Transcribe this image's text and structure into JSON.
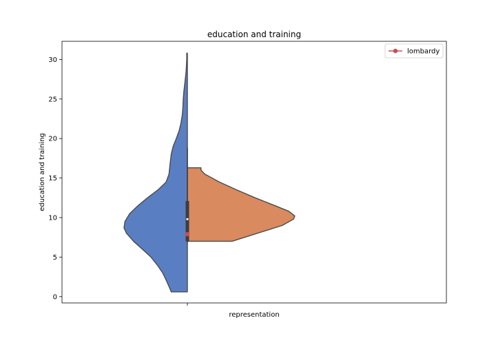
{
  "chart_data": {
    "type": "violin",
    "title": "education and training",
    "xlabel": "",
    "ylabel": "education and training",
    "categories": [
      "representation"
    ],
    "ylim": [
      -0.8,
      32.3
    ],
    "yticks": [
      0,
      5,
      10,
      15,
      20,
      25,
      30
    ],
    "grid": false,
    "legend": {
      "placement": "top-right",
      "entries": [
        "lombardy"
      ]
    },
    "split": true,
    "series": [
      {
        "side": "left",
        "color": "#5a7ec2",
        "range": [
          0.6,
          30.8
        ],
        "density_profile": [
          [
            0.6,
            0.51
          ],
          [
            1.0,
            0.55
          ],
          [
            2.0,
            0.66
          ],
          [
            3.0,
            0.78
          ],
          [
            4.0,
            0.95
          ],
          [
            5.0,
            1.15
          ],
          [
            6.0,
            1.42
          ],
          [
            7.0,
            1.7
          ],
          [
            8.0,
            1.92
          ],
          [
            8.7,
            2.0
          ],
          [
            9.5,
            1.97
          ],
          [
            10.5,
            1.82
          ],
          [
            11.5,
            1.56
          ],
          [
            12.5,
            1.26
          ],
          [
            13.5,
            0.93
          ],
          [
            14.5,
            0.67
          ],
          [
            15.5,
            0.58
          ],
          [
            17.0,
            0.54
          ],
          [
            18.0,
            0.51
          ],
          [
            19.0,
            0.45
          ],
          [
            20.0,
            0.35
          ],
          [
            21.0,
            0.26
          ],
          [
            22.0,
            0.2
          ],
          [
            23.0,
            0.16
          ],
          [
            24.0,
            0.14
          ],
          [
            25.0,
            0.13
          ],
          [
            26.0,
            0.11
          ],
          [
            27.0,
            0.08
          ],
          [
            28.5,
            0.04
          ],
          [
            30.0,
            0.02
          ],
          [
            30.8,
            0.02
          ]
        ]
      },
      {
        "side": "right",
        "color": "#d98a5f",
        "range": [
          7.0,
          16.3
        ],
        "density_profile": [
          [
            7.0,
            1.41
          ],
          [
            8.0,
            2.2
          ],
          [
            9.0,
            2.99
          ],
          [
            9.8,
            3.35
          ],
          [
            10.2,
            3.39
          ],
          [
            10.8,
            3.2
          ],
          [
            11.5,
            2.77
          ],
          [
            12.5,
            2.14
          ],
          [
            13.5,
            1.56
          ],
          [
            14.5,
            1.01
          ],
          [
            15.5,
            0.55
          ],
          [
            16.0,
            0.43
          ],
          [
            16.3,
            0.43
          ]
        ]
      }
    ],
    "box": {
      "q1": 7.0,
      "q3": 12.1,
      "median": 9.8,
      "whisker_low": 6.8,
      "whisker_high": 18.8
    },
    "points": [
      {
        "label": "lombardy",
        "value": 7.9,
        "color": "#c44e52"
      }
    ]
  }
}
